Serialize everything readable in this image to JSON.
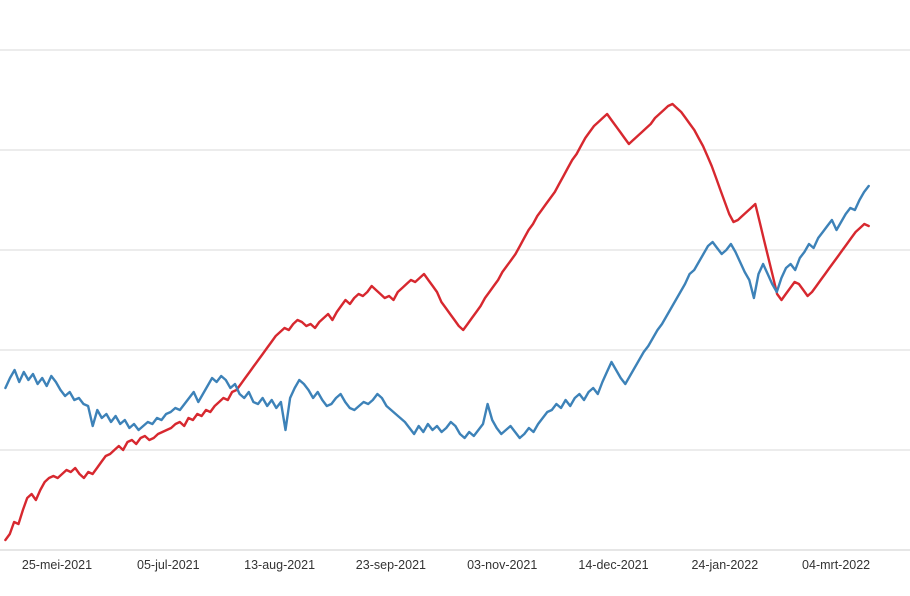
{
  "chart_data": {
    "type": "line",
    "title": "",
    "xlabel": "",
    "ylabel": "",
    "x_tick_labels": [
      "25-mei-2021",
      "05-jul-2021",
      "13-aug-2021",
      "23-sep-2021",
      "03-nov-2021",
      "14-dec-2021",
      "24-jan-2022",
      "04-mrt-2022"
    ],
    "x_range_days_before_first_tick": 19,
    "x_range_days_after_last_tick": 12,
    "gridlines": 5,
    "grid": true,
    "series": [
      {
        "color": "#d7282f",
        "values": [
          0.5,
          0.8,
          1.4,
          1.3,
          2.0,
          2.6,
          2.8,
          2.5,
          3.0,
          3.4,
          3.6,
          3.7,
          3.6,
          3.8,
          4.0,
          3.9,
          4.1,
          3.8,
          3.6,
          3.9,
          3.8,
          4.1,
          4.4,
          4.7,
          4.8,
          5.0,
          5.2,
          5.0,
          5.4,
          5.5,
          5.3,
          5.6,
          5.7,
          5.5,
          5.6,
          5.8,
          5.9,
          6.0,
          6.1,
          6.3,
          6.4,
          6.2,
          6.6,
          6.5,
          6.8,
          6.7,
          7.0,
          6.9,
          7.2,
          7.4,
          7.6,
          7.5,
          7.9,
          8.0,
          8.3,
          8.6,
          8.9,
          9.2,
          9.5,
          9.8,
          10.1,
          10.4,
          10.7,
          10.9,
          11.1,
          11.0,
          11.3,
          11.5,
          11.4,
          11.2,
          11.3,
          11.1,
          11.4,
          11.6,
          11.8,
          11.5,
          11.9,
          12.2,
          12.5,
          12.3,
          12.6,
          12.8,
          12.7,
          12.9,
          13.2,
          13.0,
          12.8,
          12.6,
          12.7,
          12.5,
          12.9,
          13.1,
          13.3,
          13.5,
          13.4,
          13.6,
          13.8,
          13.5,
          13.2,
          12.9,
          12.4,
          12.1,
          11.8,
          11.5,
          11.2,
          11.0,
          11.3,
          11.6,
          11.9,
          12.2,
          12.6,
          12.9,
          13.2,
          13.5,
          13.9,
          14.2,
          14.5,
          14.8,
          15.2,
          15.6,
          16.0,
          16.3,
          16.7,
          17.0,
          17.3,
          17.6,
          17.9,
          18.3,
          18.7,
          19.1,
          19.5,
          19.8,
          20.2,
          20.6,
          20.9,
          21.2,
          21.4,
          21.6,
          21.8,
          21.5,
          21.2,
          20.9,
          20.6,
          20.3,
          20.5,
          20.7,
          20.9,
          21.1,
          21.3,
          21.6,
          21.8,
          22.0,
          22.2,
          22.3,
          22.1,
          21.9,
          21.6,
          21.3,
          21.0,
          20.6,
          20.2,
          19.7,
          19.2,
          18.6,
          18.0,
          17.4,
          16.8,
          16.4,
          16.5,
          16.7,
          16.9,
          17.1,
          17.3,
          16.4,
          15.5,
          14.6,
          13.7,
          12.8,
          12.5,
          12.8,
          13.1,
          13.4,
          13.3,
          13.0,
          12.7,
          12.9,
          13.2,
          13.5,
          13.8,
          14.1,
          14.4,
          14.7,
          15.0,
          15.3,
          15.6,
          15.9,
          16.1,
          16.3,
          16.2
        ]
      },
      {
        "color": "#3d82b8",
        "values": [
          8.1,
          8.6,
          9.0,
          8.4,
          8.9,
          8.5,
          8.8,
          8.3,
          8.6,
          8.2,
          8.7,
          8.4,
          8.0,
          7.7,
          7.9,
          7.5,
          7.6,
          7.3,
          7.2,
          6.2,
          7.0,
          6.6,
          6.8,
          6.4,
          6.7,
          6.3,
          6.5,
          6.1,
          6.3,
          6.0,
          6.2,
          6.4,
          6.3,
          6.6,
          6.5,
          6.8,
          6.9,
          7.1,
          7.0,
          7.3,
          7.6,
          7.9,
          7.4,
          7.8,
          8.2,
          8.6,
          8.4,
          8.7,
          8.5,
          8.1,
          8.3,
          7.8,
          7.6,
          7.9,
          7.4,
          7.3,
          7.6,
          7.2,
          7.5,
          7.1,
          7.4,
          6.0,
          7.6,
          8.1,
          8.5,
          8.3,
          8.0,
          7.6,
          7.9,
          7.5,
          7.2,
          7.3,
          7.6,
          7.8,
          7.4,
          7.1,
          7.0,
          7.2,
          7.4,
          7.3,
          7.5,
          7.8,
          7.6,
          7.2,
          7.0,
          6.8,
          6.6,
          6.4,
          6.1,
          5.8,
          6.2,
          5.9,
          6.3,
          6.0,
          6.2,
          5.9,
          6.1,
          6.4,
          6.2,
          5.8,
          5.6,
          5.9,
          5.7,
          6.0,
          6.3,
          7.3,
          6.5,
          6.1,
          5.8,
          6.0,
          6.2,
          5.9,
          5.6,
          5.8,
          6.1,
          5.9,
          6.3,
          6.6,
          6.9,
          7.0,
          7.3,
          7.1,
          7.5,
          7.2,
          7.6,
          7.8,
          7.5,
          7.9,
          8.1,
          7.8,
          8.4,
          8.9,
          9.4,
          9.0,
          8.6,
          8.3,
          8.7,
          9.1,
          9.5,
          9.9,
          10.2,
          10.6,
          11.0,
          11.3,
          11.7,
          12.1,
          12.5,
          12.9,
          13.3,
          13.8,
          14.0,
          14.4,
          14.8,
          15.2,
          15.4,
          15.1,
          14.8,
          15.0,
          15.3,
          14.9,
          14.4,
          13.9,
          13.5,
          12.6,
          13.8,
          14.3,
          13.8,
          13.3,
          12.9,
          13.6,
          14.1,
          14.3,
          14.0,
          14.6,
          14.9,
          15.3,
          15.1,
          15.6,
          15.9,
          16.2,
          16.5,
          16.0,
          16.4,
          16.8,
          17.1,
          17.0,
          17.5,
          17.9,
          18.2
        ]
      }
    ]
  }
}
